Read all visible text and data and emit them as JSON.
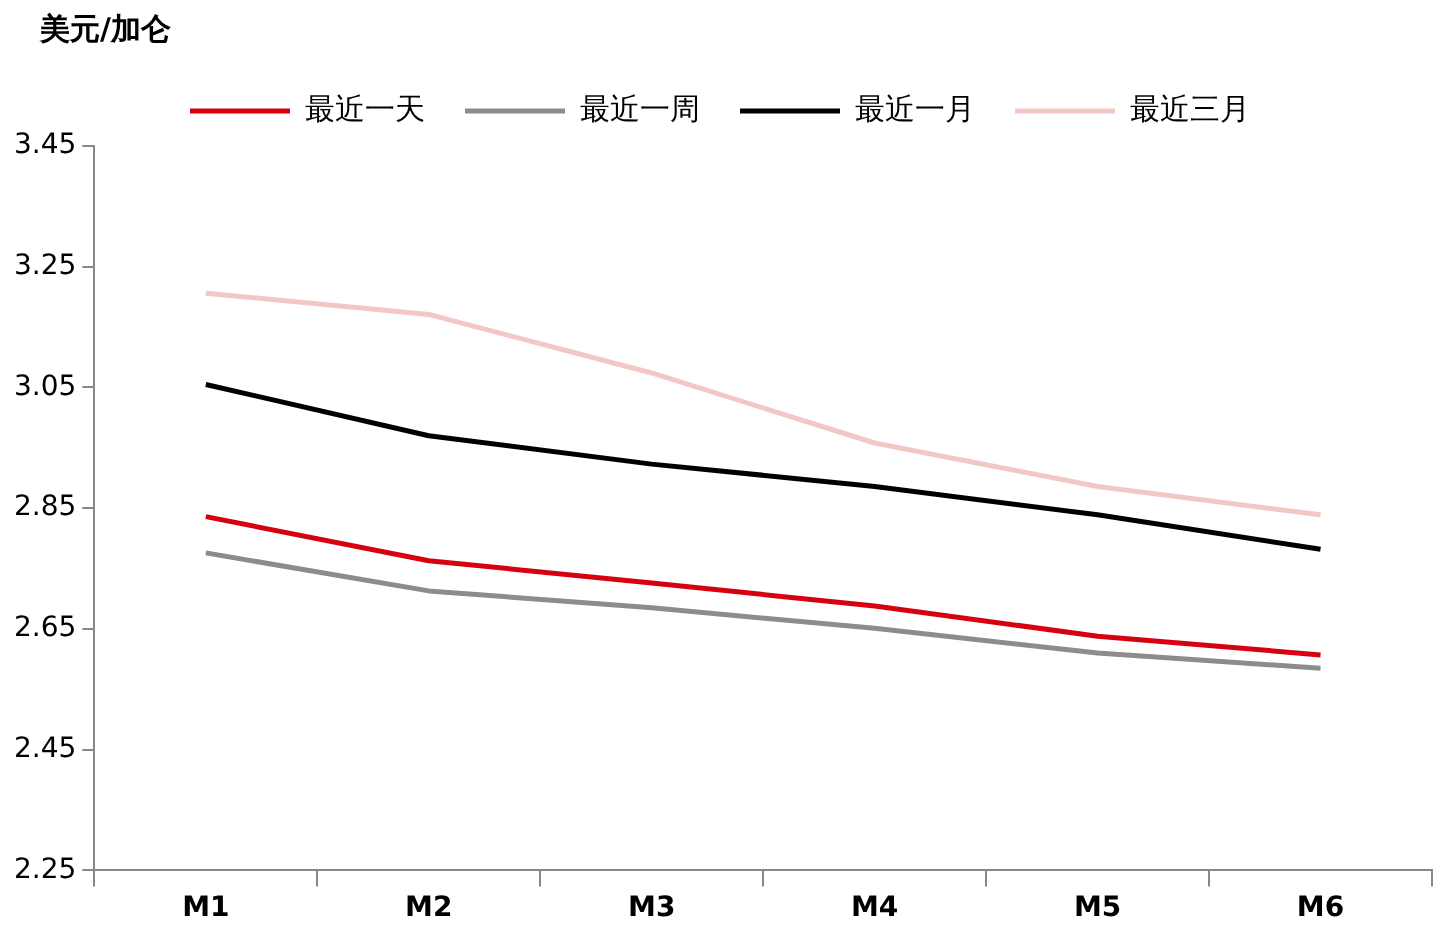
{
  "chart_data": {
    "type": "line",
    "ylabel": "美元/加仑",
    "categories": [
      "M1",
      "M2",
      "M3",
      "M4",
      "M5",
      "M6"
    ],
    "series": [
      {
        "name": "最近一天",
        "color": "#d7000f",
        "values": [
          2.836,
          2.763,
          2.726,
          2.688,
          2.638,
          2.607
        ]
      },
      {
        "name": "最近一周",
        "color": "#8c8c8c",
        "values": [
          2.776,
          2.713,
          2.685,
          2.651,
          2.61,
          2.585
        ]
      },
      {
        "name": "最近一月",
        "color": "#000000",
        "values": [
          3.055,
          2.97,
          2.923,
          2.886,
          2.839,
          2.782
        ]
      },
      {
        "name": "最近三月",
        "color": "#f4c7c7",
        "values": [
          3.206,
          3.171,
          3.074,
          2.958,
          2.886,
          2.839
        ]
      }
    ],
    "ylim": [
      2.25,
      3.45
    ],
    "yticks": [
      2.25,
      2.45,
      2.65,
      2.85,
      3.05,
      3.25,
      3.45
    ],
    "grid": false,
    "legend": "top",
    "marker": "none",
    "line_style": "solid"
  }
}
